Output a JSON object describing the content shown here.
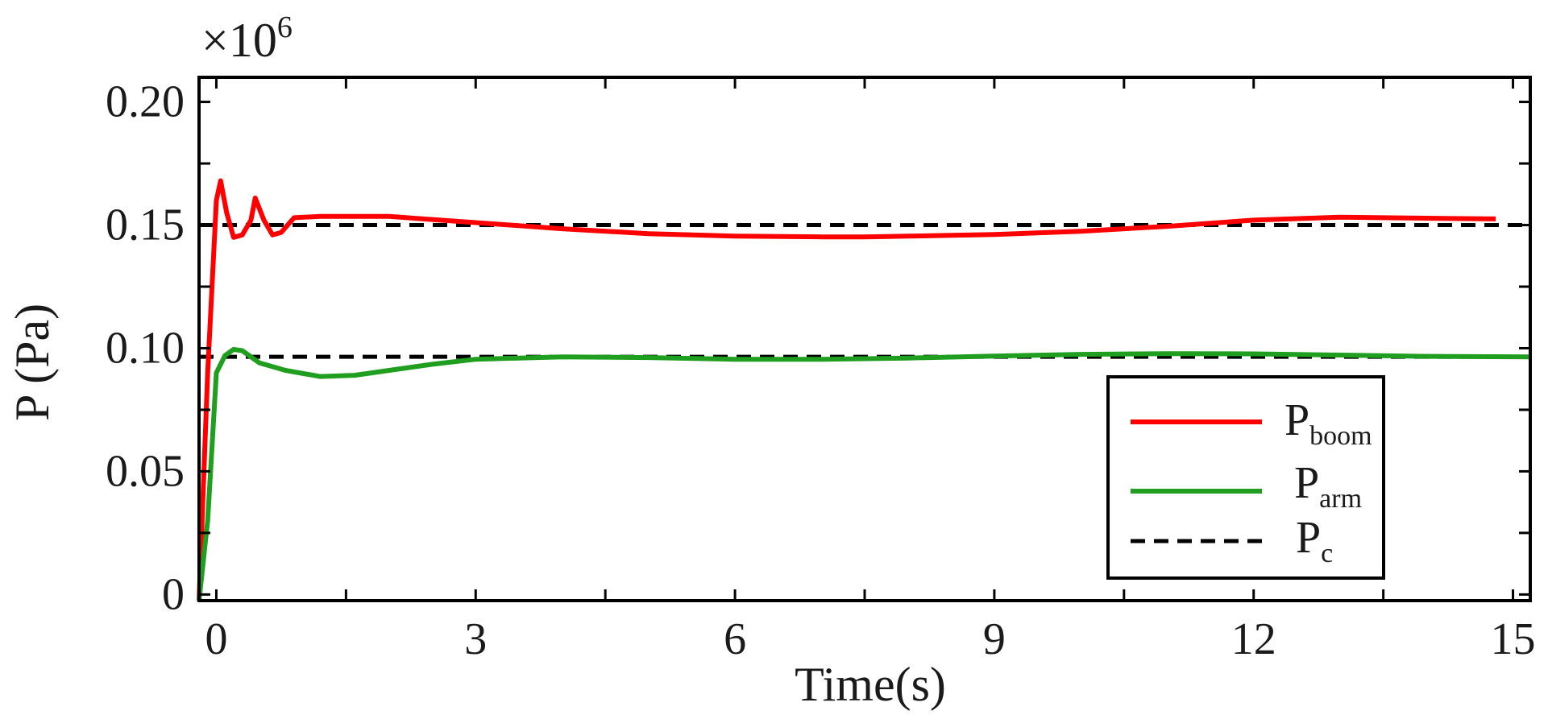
{
  "chart_data": {
    "type": "line",
    "xlabel": "Time(s)",
    "ylabel": "P (Pa)",
    "y_multiplier": "×10",
    "y_exponent": "6",
    "xlim": [
      -0.2,
      15.2
    ],
    "ylim": [
      -0.0025,
      0.21
    ],
    "xticks": [
      0,
      3,
      6,
      9,
      12,
      15
    ],
    "xtick_labels": [
      "0",
      "3",
      "6",
      "9",
      "12",
      "15"
    ],
    "yticks": [
      0,
      0.05,
      0.1,
      0.15,
      0.2
    ],
    "ytick_labels": [
      "0",
      "0.05",
      "0.10",
      "0.15",
      "0.20"
    ],
    "legend_position": "bottom-right",
    "grid": false,
    "series": [
      {
        "name": "P",
        "subscript": "boom",
        "color": "#ff0000",
        "style": "solid",
        "x": [
          -0.2,
          -0.1,
          0.0,
          0.05,
          0.12,
          0.2,
          0.3,
          0.4,
          0.45,
          0.55,
          0.65,
          0.75,
          0.9,
          1.2,
          2.0,
          3.0,
          4.0,
          5.0,
          6.0,
          7.0,
          7.5,
          8.0,
          9.0,
          10.0,
          11.0,
          12.0,
          13.0,
          14.0,
          14.8
        ],
        "y": [
          -0.0025,
          0.09,
          0.16,
          0.168,
          0.155,
          0.145,
          0.146,
          0.152,
          0.161,
          0.152,
          0.146,
          0.147,
          0.153,
          0.1535,
          0.1535,
          0.151,
          0.1485,
          0.1465,
          0.1455,
          0.1452,
          0.1452,
          0.1455,
          0.1462,
          0.1475,
          0.1495,
          0.152,
          0.1532,
          0.1528,
          0.1525
        ]
      },
      {
        "name": "P",
        "subscript": "arm",
        "color": "#1f9e1f",
        "style": "solid",
        "x": [
          -0.2,
          -0.1,
          0.0,
          0.1,
          0.2,
          0.3,
          0.5,
          0.8,
          1.2,
          1.6,
          2.0,
          2.5,
          3.0,
          4.0,
          5.0,
          6.0,
          7.0,
          8.0,
          9.0,
          10.0,
          11.0,
          12.0,
          13.0,
          14.0,
          15.2
        ],
        "y": [
          -0.0025,
          0.03,
          0.09,
          0.097,
          0.0995,
          0.099,
          0.094,
          0.091,
          0.0885,
          0.089,
          0.091,
          0.0935,
          0.0955,
          0.0965,
          0.0962,
          0.0955,
          0.0955,
          0.096,
          0.0968,
          0.0975,
          0.0978,
          0.0977,
          0.0972,
          0.0967,
          0.0965
        ]
      },
      {
        "name": "P",
        "subscript": "c",
        "color": "#000000",
        "style": "dashed",
        "lines": [
          {
            "x": [
              -0.2,
              15.2
            ],
            "y": [
              0.15,
              0.15
            ]
          },
          {
            "x": [
              -0.2,
              15.2
            ],
            "y": [
              0.0965,
              0.0965
            ]
          }
        ]
      }
    ]
  }
}
